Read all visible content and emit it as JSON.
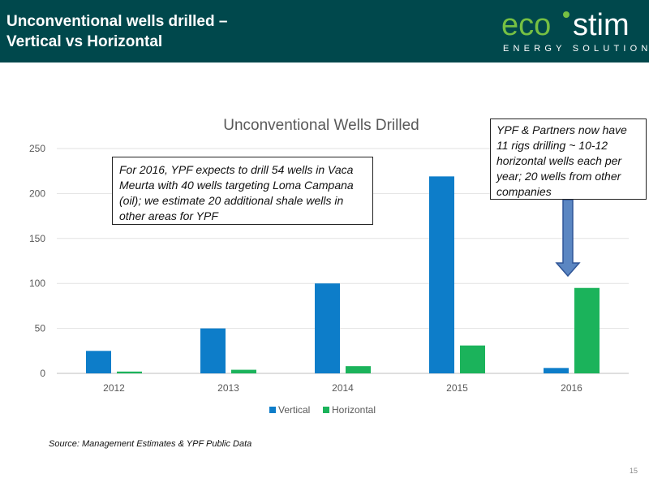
{
  "header": {
    "title": "Unconventional wells drilled –\nVertical vs Horizontal"
  },
  "logo": {
    "part1": "eco",
    "part2": "stim",
    "tagline": "ENERGY SOLUTIONS",
    "colors": {
      "green": "#76c043",
      "text": "#ffffff"
    }
  },
  "chart_data": {
    "type": "bar",
    "title": "Unconventional Wells Drilled",
    "categories": [
      "2012",
      "2013",
      "2014",
      "2015",
      "2016"
    ],
    "series": [
      {
        "name": "Vertical",
        "color": "#0d7dc9",
        "values": [
          25,
          50,
          100,
          219,
          6
        ]
      },
      {
        "name": "Horizontal",
        "color": "#1bb35b",
        "values": [
          2,
          4,
          8,
          31,
          95
        ]
      }
    ],
    "ylim": [
      0,
      250
    ],
    "yticks": [
      "0",
      "50",
      "100",
      "150",
      "200",
      "250"
    ],
    "grid": true,
    "legend": "bottom",
    "xlabel": "",
    "ylabel": ""
  },
  "annotations": {
    "left_box": "For 2016, YPF expects to drill 54 wells in Vaca Meurta with 40 wells targeting Loma Campana (oil); we estimate 20 additional shale wells in other areas for YPF",
    "right_box": "YPF & Partners now have 11 rigs drilling ~ 10-12 horizontal wells each per year; 20 wells from other companies"
  },
  "footer": {
    "source": "Source: Management Estimates & YPF Public Data",
    "page_number": "15"
  }
}
